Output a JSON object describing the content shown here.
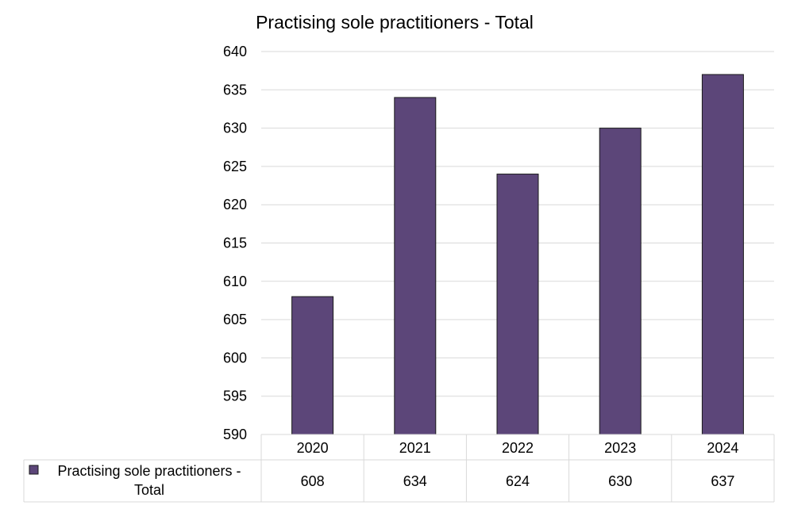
{
  "chart_data": {
    "type": "bar",
    "title": "Practising sole practitioners - Total",
    "categories": [
      "2020",
      "2021",
      "2022",
      "2023",
      "2024"
    ],
    "series": [
      {
        "name": "Practising sole practitioners - Total",
        "name_lines": [
          "Practising sole practitioners -",
          "Total"
        ],
        "values": [
          608,
          634,
          624,
          630,
          637
        ],
        "color": "#5c4679"
      }
    ],
    "ylim": [
      590,
      640
    ],
    "yticks": [
      "590",
      "595",
      "600",
      "605",
      "610",
      "615",
      "620",
      "625",
      "630",
      "635",
      "640"
    ],
    "grid": true,
    "legend": "data-table",
    "data_table": true
  }
}
